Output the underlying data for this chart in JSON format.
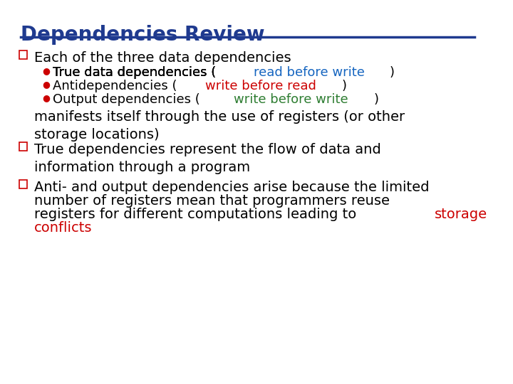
{
  "title": "Dependencies Review",
  "title_color": "#1F3A8F",
  "title_underline_color": "#1F3A8F",
  "bg_color": "#FFFFFF",
  "text_color": "#000000",
  "bullet_color": "#CC0000",
  "highlight_blue": "#1565C0",
  "highlight_red": "#CC0000",
  "highlight_green": "#2E7D32",
  "square_bullet_color": "#CC0000",
  "line1": "Each of the three data dependencies",
  "sub1": "True data dependencies (",
  "sub1_highlight": "read before write",
  "sub1_highlight_color": "#1565C0",
  "sub1_end": ")",
  "sub2": "Antidependencies (",
  "sub2_highlight": "write before read",
  "sub2_highlight_color": "#CC0000",
  "sub2_end": ")",
  "sub3": "Output dependencies (",
  "sub3_highlight": "write before write",
  "sub3_highlight_color": "#2E7D32",
  "sub3_end": ")",
  "continuation": "manifests itself through the use of registers (or other\nstorage locations)",
  "line2_part1": "True dependencies represent the flow of data and\ninformation through a program",
  "line3_part1": "Anti- and output dependencies arise because the limited\nnumber of registers mean that programmers reuse\nregisters for different computations leading to ",
  "line3_highlight": "storage\nconflicts",
  "line3_highlight_color": "#CC0000",
  "font_family": "DejaVu Sans",
  "title_fontsize": 20,
  "main_fontsize": 14,
  "sub_fontsize": 13
}
